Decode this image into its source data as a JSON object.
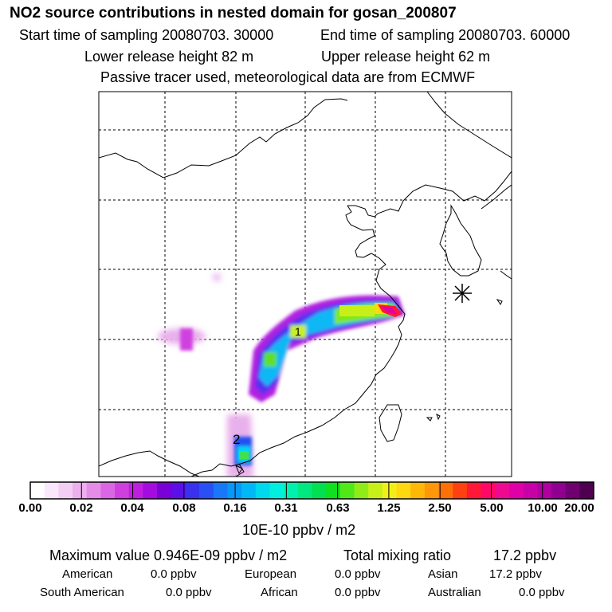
{
  "header": {
    "title": "NO2 source contributions in nested domain for gosan_200807",
    "start_label": "Start time of sampling 20080703. 30000",
    "end_label": "End time of sampling 20080703. 60000",
    "lower_label": "Lower release height   82 m",
    "upper_label": "Upper release height   62 m",
    "note": "Passive tracer used, meteorological data are from ECMWF"
  },
  "map": {
    "site_marker": "receptor-star",
    "labels": [
      "1",
      "2"
    ]
  },
  "legend": {
    "ticks": [
      "0.00",
      "0.02",
      "0.04",
      "0.08",
      "0.16",
      "0.31",
      "0.63",
      "1.25",
      "2.50",
      "5.00",
      "10.00",
      "20.00"
    ],
    "units": "10E-10 ppbv / m2",
    "colors": [
      "#ffffff",
      "#fbe7fb",
      "#f4cdf4",
      "#ecb0ec",
      "#e58ce8",
      "#da66e3",
      "#cf3fe0",
      "#bf1ee0",
      "#a50adf",
      "#7a00d8",
      "#5a10e6",
      "#3a30ef",
      "#2850f5",
      "#1878f8",
      "#0898f8",
      "#00b8f5",
      "#00d8ee",
      "#00f0e0",
      "#00f0b0",
      "#00e880",
      "#00e050",
      "#10e020",
      "#50e818",
      "#90ec18",
      "#c8f018",
      "#f0f018",
      "#ffd810",
      "#ffb808",
      "#ff9808",
      "#ff7008",
      "#ff4010",
      "#ff1838",
      "#ff0868",
      "#f00890",
      "#e000a8",
      "#c800a8",
      "#b000a0",
      "#900090",
      "#700070",
      "#500050"
    ]
  },
  "stats": {
    "max_label": "Maximum value  0.946E-09 ppbv / m2",
    "total_label": "Total mixing ratio",
    "total_value": "17.2 ppbv",
    "american_label": "American",
    "american_value": "0.0 ppbv",
    "european_label": "European",
    "european_value": "0.0 ppbv",
    "asian_label": "Asian",
    "asian_value": "17.2 ppbv",
    "south_american_label": "South American",
    "south_american_value": "0.0 ppbv",
    "african_label": "African",
    "african_value": "0.0 ppbv",
    "australian_label": "Australian",
    "australian_value": "0.0 ppbv"
  }
}
